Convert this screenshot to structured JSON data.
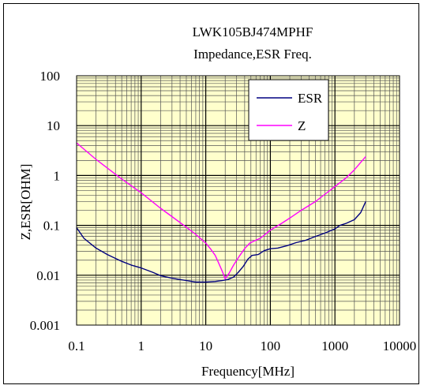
{
  "chart_data": {
    "type": "line",
    "title": "LWK105BJ474MPHF",
    "subtitle": "Impedance,ESR Freq.",
    "xlabel": "Frequency[MHz]",
    "ylabel": "Z,ESR[OHM]",
    "xscale": "log",
    "yscale": "log",
    "xlim": [
      0.1,
      10000
    ],
    "ylim": [
      0.001,
      100
    ],
    "x_ticks": [
      "0.1",
      "1",
      "10",
      "100",
      "1000",
      "10000"
    ],
    "y_ticks": [
      "0.001",
      "0.01",
      "0.1",
      "1",
      "10",
      "100"
    ],
    "plot_background": "#FFFFCC",
    "grid": true,
    "legend_position": "top-right",
    "series": [
      {
        "name": "ESR",
        "color": "#000080",
        "points": [
          [
            0.1,
            0.09
          ],
          [
            0.13,
            0.055
          ],
          [
            0.2,
            0.035
          ],
          [
            0.3,
            0.026
          ],
          [
            0.5,
            0.019
          ],
          [
            0.7,
            0.016
          ],
          [
            1,
            0.014
          ],
          [
            1.5,
            0.0115
          ],
          [
            2,
            0.0098
          ],
          [
            3,
            0.0087
          ],
          [
            5,
            0.0078
          ],
          [
            7,
            0.0073
          ],
          [
            10,
            0.0073
          ],
          [
            14,
            0.0075
          ],
          [
            18,
            0.0078
          ],
          [
            22,
            0.0082
          ],
          [
            27,
            0.0092
          ],
          [
            32,
            0.0115
          ],
          [
            38,
            0.015
          ],
          [
            45,
            0.021
          ],
          [
            52,
            0.025
          ],
          [
            65,
            0.026
          ],
          [
            80,
            0.031
          ],
          [
            100,
            0.034
          ],
          [
            130,
            0.035
          ],
          [
            180,
            0.039
          ],
          [
            250,
            0.045
          ],
          [
            350,
            0.05
          ],
          [
            500,
            0.06
          ],
          [
            700,
            0.07
          ],
          [
            1000,
            0.085
          ],
          [
            1200,
            0.1
          ],
          [
            1500,
            0.11
          ],
          [
            2000,
            0.13
          ],
          [
            2500,
            0.18
          ],
          [
            3000,
            0.3
          ]
        ]
      },
      {
        "name": "Z",
        "color": "#FF00FF",
        "points": [
          [
            0.1,
            4.5
          ],
          [
            0.2,
            2.1
          ],
          [
            0.5,
            0.85
          ],
          [
            1,
            0.45
          ],
          [
            2,
            0.22
          ],
          [
            3,
            0.15
          ],
          [
            5,
            0.092
          ],
          [
            7,
            0.066
          ],
          [
            10,
            0.044
          ],
          [
            12,
            0.033
          ],
          [
            14,
            0.025
          ],
          [
            16,
            0.017
          ],
          [
            18,
            0.012
          ],
          [
            20,
            0.0085
          ],
          [
            23,
            0.011
          ],
          [
            27,
            0.016
          ],
          [
            33,
            0.024
          ],
          [
            40,
            0.034
          ],
          [
            48,
            0.044
          ],
          [
            55,
            0.048
          ],
          [
            70,
            0.055
          ],
          [
            100,
            0.08
          ],
          [
            150,
            0.11
          ],
          [
            200,
            0.14
          ],
          [
            300,
            0.2
          ],
          [
            500,
            0.3
          ],
          [
            800,
            0.48
          ],
          [
            1000,
            0.6
          ],
          [
            1500,
            0.9
          ],
          [
            2000,
            1.3
          ],
          [
            3000,
            2.4
          ]
        ]
      }
    ]
  }
}
